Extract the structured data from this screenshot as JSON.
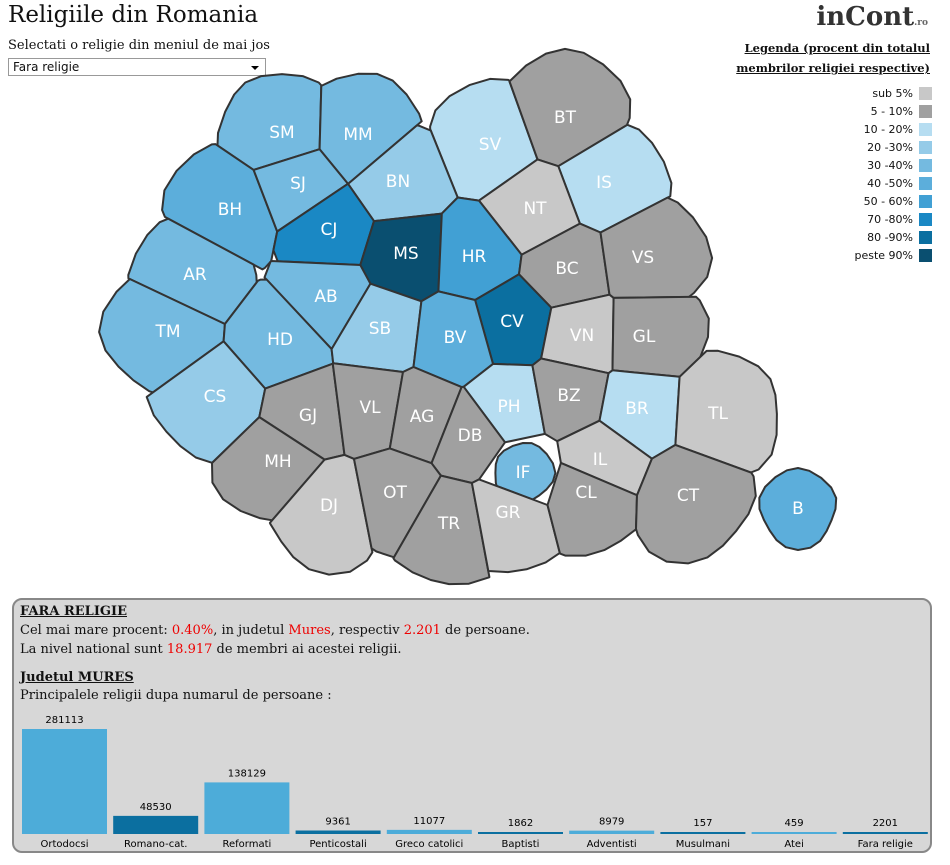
{
  "header": {
    "title": "Religiile din Romania",
    "logo": "inCont",
    "logo_suffix": ".ro",
    "select_label": "Selectati o religie din meniul de mai jos",
    "select_value": "Fara religie"
  },
  "legend": {
    "title": "Legenda (procent din totalul membrilor religiei respective)",
    "items": [
      {
        "label": "sub 5%",
        "color": "#c8c8c8"
      },
      {
        "label": "5 - 10%",
        "color": "#a0a0a0"
      },
      {
        "label": "10 - 20%",
        "color": "#b6ddf1"
      },
      {
        "label": "20 -30%",
        "color": "#95cbe8"
      },
      {
        "label": "30 -40%",
        "color": "#74bae0"
      },
      {
        "label": "40 -50%",
        "color": "#5caedb"
      },
      {
        "label": "50 - 60%",
        "color": "#41a0d4"
      },
      {
        "label": "70 -80%",
        "color": "#1a88c4"
      },
      {
        "label": "80 -90%",
        "color": "#0b6fa0"
      },
      {
        "label": "peste 90%",
        "color": "#0a4f70"
      }
    ]
  },
  "map": {
    "counties": [
      {
        "label": "SM",
        "color": "#74bae0"
      },
      {
        "label": "MM",
        "color": "#74bae0"
      },
      {
        "label": "SV",
        "color": "#b6ddf1"
      },
      {
        "label": "BT",
        "color": "#a0a0a0"
      },
      {
        "label": "BH",
        "color": "#5caedb"
      },
      {
        "label": "SJ",
        "color": "#74bae0"
      },
      {
        "label": "BN",
        "color": "#95cbe8"
      },
      {
        "label": "IS",
        "color": "#b6ddf1"
      },
      {
        "label": "NT",
        "color": "#c8c8c8"
      },
      {
        "label": "CJ",
        "color": "#1a88c4"
      },
      {
        "label": "MS",
        "color": "#0a4f70"
      },
      {
        "label": "HR",
        "color": "#41a0d4"
      },
      {
        "label": "AR",
        "color": "#74bae0"
      },
      {
        "label": "BC",
        "color": "#a0a0a0"
      },
      {
        "label": "VS",
        "color": "#a0a0a0"
      },
      {
        "label": "AB",
        "color": "#74bae0"
      },
      {
        "label": "CV",
        "color": "#0b6fa0"
      },
      {
        "label": "TM",
        "color": "#74bae0"
      },
      {
        "label": "HD",
        "color": "#74bae0"
      },
      {
        "label": "SB",
        "color": "#95cbe8"
      },
      {
        "label": "BV",
        "color": "#5caedb"
      },
      {
        "label": "VN",
        "color": "#c8c8c8"
      },
      {
        "label": "GL",
        "color": "#a0a0a0"
      },
      {
        "label": "CS",
        "color": "#95cbe8"
      },
      {
        "label": "GJ",
        "color": "#a0a0a0"
      },
      {
        "label": "VL",
        "color": "#a0a0a0"
      },
      {
        "label": "AG",
        "color": "#a0a0a0"
      },
      {
        "label": "PH",
        "color": "#b6ddf1"
      },
      {
        "label": "BZ",
        "color": "#a0a0a0"
      },
      {
        "label": "BR",
        "color": "#b6ddf1"
      },
      {
        "label": "TL",
        "color": "#c8c8c8"
      },
      {
        "label": "MH",
        "color": "#a0a0a0"
      },
      {
        "label": "DB",
        "color": "#a0a0a0"
      },
      {
        "label": "IF",
        "color": "#74bae0"
      },
      {
        "label": "IL",
        "color": "#c8c8c8"
      },
      {
        "label": "DJ",
        "color": "#c8c8c8"
      },
      {
        "label": "OT",
        "color": "#a0a0a0"
      },
      {
        "label": "TR",
        "color": "#a0a0a0"
      },
      {
        "label": "GR",
        "color": "#c8c8c8"
      },
      {
        "label": "CL",
        "color": "#a0a0a0"
      },
      {
        "label": "CT",
        "color": "#a0a0a0"
      },
      {
        "label": "B",
        "color": "#5caedb"
      }
    ]
  },
  "panel": {
    "religion": "FARA RELIGIE",
    "line1": [
      "Cel mai mare procent: ",
      "0.40%",
      ", in judetul ",
      "Mures",
      ", respectiv ",
      "2.201",
      " de persoane."
    ],
    "line2": [
      "La nivel national sunt ",
      "18.917",
      " de membri ai acestei religii."
    ],
    "county": "Judetul MURES",
    "subtitle": "Principalele religii dupa numarul de persoane :"
  },
  "chart_data": {
    "type": "bar",
    "categories": [
      "Ortodocsi",
      "Romano-cat.",
      "Reformati",
      "Penticostali",
      "Greco catolici",
      "Baptisti",
      "Adventisti",
      "Musulmani",
      "Atei",
      "Fara religie"
    ],
    "values": [
      281113,
      48530,
      138129,
      9361,
      11077,
      1862,
      8979,
      157,
      459,
      2201
    ],
    "colors": [
      "#4dacd9",
      "#0b6fa0",
      "#4dacd9",
      "#0b6fa0",
      "#4dacd9",
      "#0b6fa0",
      "#4dacd9",
      "#0b6fa0",
      "#4dacd9",
      "#0b6fa0"
    ]
  }
}
